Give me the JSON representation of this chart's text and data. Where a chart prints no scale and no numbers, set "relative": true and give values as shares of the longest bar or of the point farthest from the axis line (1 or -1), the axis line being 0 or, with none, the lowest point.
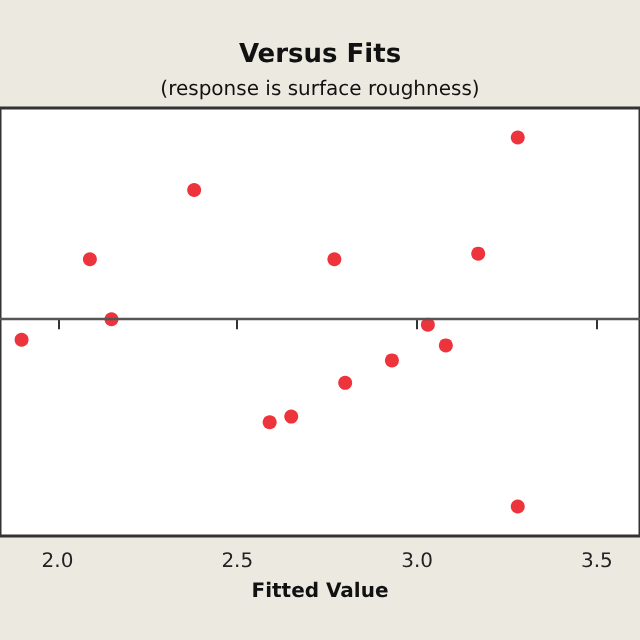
{
  "chart_data": {
    "type": "scatter",
    "title": "Versus Fits",
    "subtitle": "(response is surface roughness)",
    "xlabel": "Fitted Value",
    "relative": true,
    "tick_labels": "x",
    "grid": false,
    "marker": "circle",
    "xlim": [
      1.84,
      3.62
    ],
    "xticks": [
      {
        "value": 2,
        "label": "2.0"
      },
      {
        "value": 2.5,
        "label": "2.5"
      },
      {
        "value": 3,
        "label": "3.0"
      },
      {
        "value": 3.5,
        "label": "3.5"
      }
    ],
    "ref_lines": [
      {
        "axis": "y",
        "value": 0,
        "color": "#555555"
      }
    ],
    "series": [
      {
        "color": "#e8000b",
        "x": [
          1.9,
          2.09,
          2.15,
          2.38,
          2.59,
          2.65,
          2.77,
          2.8,
          2.93,
          3.03,
          3.08,
          3.17,
          3.28,
          3.28
        ],
        "values": [
          -0.11,
          0.32,
          0,
          0.69,
          -0.55,
          -0.52,
          0.32,
          -0.34,
          -0.22,
          -0.03,
          -0.14,
          0.35,
          0.97,
          -1
        ]
      }
    ]
  }
}
